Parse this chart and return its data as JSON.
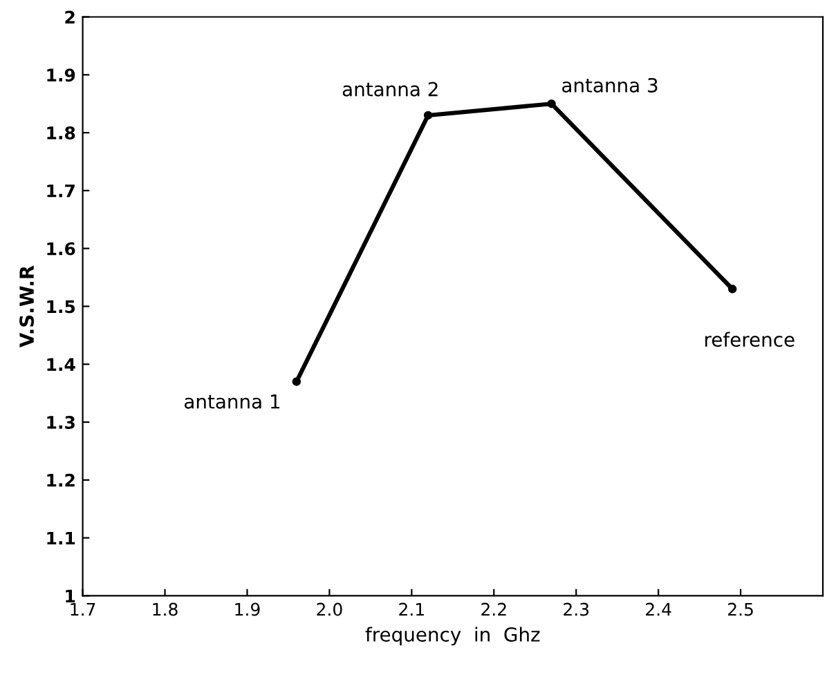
{
  "chart_data": {
    "type": "line",
    "xlabel": "frequency  in  Ghz",
    "ylabel": "V.S.W.R",
    "x": [
      1.96,
      2.12,
      2.27,
      2.49
    ],
    "series": [
      {
        "color": "#000000",
        "values": [
          1.37,
          1.83,
          1.85,
          1.53
        ]
      }
    ],
    "marker": "circle",
    "line_style": "solid",
    "xlim": [
      1.7,
      2.6
    ],
    "ylim": [
      1,
      2
    ],
    "xticks": [
      1.7,
      1.8,
      1.9,
      {
        "value": 2.0,
        "label": "2.0"
      },
      2.1,
      2.2,
      2.3,
      2.4,
      2.5
    ],
    "yticks": [
      1,
      1.1,
      1.2,
      1.3,
      1.4,
      1.5,
      1.6,
      1.7,
      1.8,
      1.9,
      2
    ],
    "grid": false,
    "legend": false,
    "annotations": [
      {
        "text": "antanna 1",
        "x": 1.96,
        "y": 1.37
      },
      {
        "text": "antanna 2",
        "x": 2.12,
        "y": 1.83
      },
      {
        "text": "antanna 3",
        "x": 2.27,
        "y": 1.85
      },
      {
        "text": "reference",
        "x": 2.49,
        "y": 1.53
      }
    ]
  }
}
